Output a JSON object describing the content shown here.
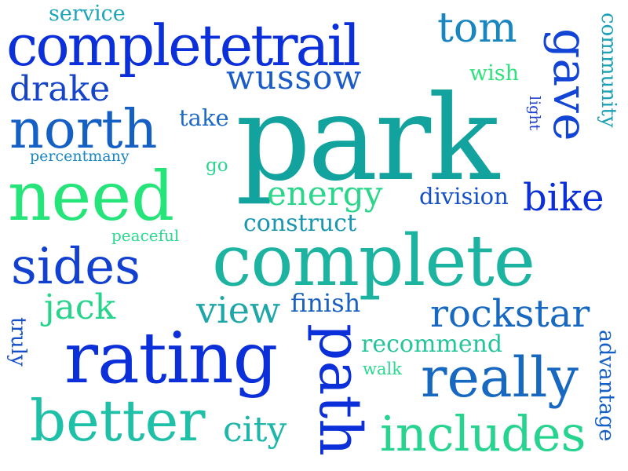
{
  "words": [
    {
      "text": "service",
      "color": "#1ea6b8"
    },
    {
      "text": "completetrail",
      "color": "#0b2fd8"
    },
    {
      "text": "tom",
      "color": "#1a86c0"
    },
    {
      "text": "gave",
      "color": "#1245d6"
    },
    {
      "text": "community",
      "color": "#1ca0b6"
    },
    {
      "text": "drake",
      "color": "#1544c8"
    },
    {
      "text": "wussow",
      "color": "#1a5bc8"
    },
    {
      "text": "wish",
      "color": "#2ce27a"
    },
    {
      "text": "north",
      "color": "#1460c4"
    },
    {
      "text": "take",
      "color": "#1e6ac8"
    },
    {
      "text": "park",
      "color": "#13a39e"
    },
    {
      "text": "light",
      "color": "#1e3ed0"
    },
    {
      "text": "percentmany",
      "color": "#1a86c0"
    },
    {
      "text": "go",
      "color": "#2bd690"
    },
    {
      "text": "need",
      "color": "#25e47a"
    },
    {
      "text": "energy",
      "color": "#2ad68a"
    },
    {
      "text": "division",
      "color": "#1550c8"
    },
    {
      "text": "bike",
      "color": "#0b2fd8"
    },
    {
      "text": "construct",
      "color": "#1a96b0"
    },
    {
      "text": "peaceful",
      "color": "#2cd890"
    },
    {
      "text": "sides",
      "color": "#1240d0"
    },
    {
      "text": "complete",
      "color": "#1cb4a0"
    },
    {
      "text": "jack",
      "color": "#28d48c"
    },
    {
      "text": "view",
      "color": "#1ea6a8"
    },
    {
      "text": "finish",
      "color": "#1a60c0"
    },
    {
      "text": "rockstar",
      "color": "#1668c0"
    },
    {
      "text": "truly",
      "color": "#1550c8"
    },
    {
      "text": "rating",
      "color": "#0b2fd8"
    },
    {
      "text": "path",
      "color": "#0b2fd8"
    },
    {
      "text": "recommend",
      "color": "#26c49a"
    },
    {
      "text": "walk",
      "color": "#2ad890"
    },
    {
      "text": "really",
      "color": "#1668c0"
    },
    {
      "text": "advantage",
      "color": "#1560c4"
    },
    {
      "text": "better",
      "color": "#1ec0a8"
    },
    {
      "text": "city",
      "color": "#1eb6a8"
    },
    {
      "text": "includes",
      "color": "#26d490"
    }
  ]
}
